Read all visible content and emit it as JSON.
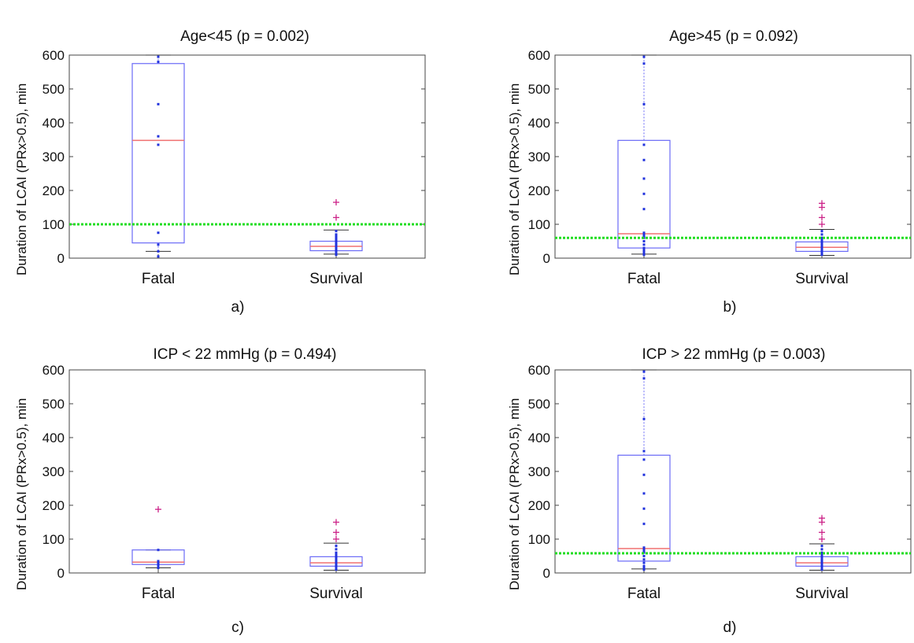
{
  "colors": {
    "box": "#6a6af7",
    "median": "#f07070",
    "whisker": "#6a6af7",
    "outlier": "#cc2288",
    "points": "#2233dd",
    "threshold": "#22dd22",
    "axis": "#444444"
  },
  "chart_data": [
    {
      "type": "box",
      "title": "Age<45 (p = 0.002)",
      "caption": "a)",
      "ylabel": "Duration of LCAI (PRx>0.5), min",
      "ylim": [
        0,
        600
      ],
      "yticks": [
        "0",
        "100",
        "200",
        "300",
        "400",
        "500",
        "600"
      ],
      "categories": [
        "Fatal",
        "Survival"
      ],
      "threshold": 100,
      "boxes": [
        {
          "name": "Fatal",
          "whislo": 20,
          "q1": 45,
          "med": 348,
          "q3": 575,
          "whishi": 600,
          "points": [
            5,
            20,
            40,
            75,
            335,
            360,
            455,
            580,
            595
          ],
          "outliers": []
        },
        {
          "name": "Survival",
          "whislo": 12,
          "q1": 22,
          "med": 35,
          "q3": 50,
          "whishi": 83,
          "points": [
            10,
            15,
            20,
            25,
            30,
            35,
            40,
            45,
            50,
            55,
            60,
            65,
            70,
            80
          ],
          "outliers": [
            120,
            165
          ]
        }
      ]
    },
    {
      "type": "box",
      "title": "Age>45 (p = 0.092)",
      "caption": "b)",
      "ylabel": "Duration of LCAI (PRx>0.5), min",
      "ylim": [
        0,
        600
      ],
      "yticks": [
        "0",
        "100",
        "200",
        "300",
        "400",
        "500",
        "600"
      ],
      "categories": [
        "Fatal",
        "Survival"
      ],
      "threshold": 60,
      "boxes": [
        {
          "name": "Fatal",
          "whislo": 12,
          "q1": 30,
          "med": 72,
          "q3": 348,
          "whishi": 600,
          "points": [
            10,
            15,
            20,
            25,
            30,
            40,
            50,
            60,
            65,
            70,
            75,
            145,
            190,
            235,
            290,
            335,
            455,
            575,
            595
          ],
          "outliers": []
        },
        {
          "name": "Survival",
          "whislo": 8,
          "q1": 20,
          "med": 32,
          "q3": 48,
          "whishi": 85,
          "points": [
            10,
            15,
            20,
            25,
            30,
            35,
            40,
            45,
            50,
            55,
            60,
            70,
            80
          ],
          "outliers": [
            100,
            120,
            150,
            162
          ]
        }
      ]
    },
    {
      "type": "box",
      "title": "ICP < 22 mmHg (p = 0.494)",
      "caption": "c)",
      "ylabel": "Duration of LCAI (PRx>0.5), min",
      "ylim": [
        0,
        600
      ],
      "yticks": [
        "0",
        "100",
        "200",
        "300",
        "400",
        "500",
        "600"
      ],
      "categories": [
        "Fatal",
        "Survival"
      ],
      "threshold": null,
      "boxes": [
        {
          "name": "Fatal",
          "whislo": 15,
          "q1": 25,
          "med": 32,
          "q3": 68,
          "whishi": 68,
          "points": [
            15,
            20,
            25,
            30,
            35,
            68
          ],
          "outliers": [
            188
          ]
        },
        {
          "name": "Survival",
          "whislo": 8,
          "q1": 20,
          "med": 30,
          "q3": 48,
          "whishi": 88,
          "points": [
            10,
            15,
            20,
            25,
            30,
            35,
            40,
            45,
            50,
            55,
            60,
            70,
            80
          ],
          "outliers": [
            100,
            120,
            150
          ]
        }
      ]
    },
    {
      "type": "box",
      "title": "ICP > 22 mmHg (p = 0.003)",
      "caption": "d)",
      "ylabel": "Duration of LCAI (PRx>0.5), min",
      "ylim": [
        0,
        600
      ],
      "yticks": [
        "0",
        "100",
        "200",
        "300",
        "400",
        "500",
        "600"
      ],
      "categories": [
        "Fatal",
        "Survival"
      ],
      "threshold": 58,
      "boxes": [
        {
          "name": "Fatal",
          "whislo": 12,
          "q1": 35,
          "med": 72,
          "q3": 348,
          "whishi": 600,
          "points": [
            10,
            15,
            20,
            30,
            40,
            50,
            60,
            65,
            70,
            75,
            145,
            190,
            235,
            290,
            335,
            360,
            455,
            575,
            595
          ],
          "outliers": []
        },
        {
          "name": "Survival",
          "whislo": 8,
          "q1": 20,
          "med": 30,
          "q3": 48,
          "whishi": 86,
          "points": [
            10,
            15,
            20,
            25,
            30,
            35,
            40,
            45,
            50,
            55,
            60,
            70,
            80
          ],
          "outliers": [
            100,
            120,
            150,
            162
          ]
        }
      ]
    }
  ]
}
